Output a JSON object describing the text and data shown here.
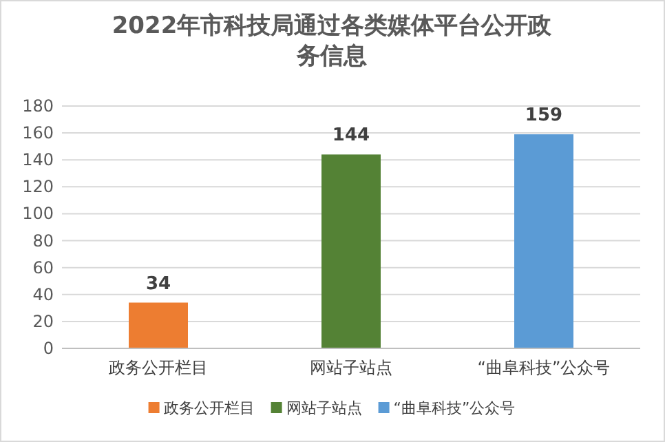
{
  "chart_data": {
    "type": "bar",
    "title": "2022年市科技局通过各类媒体平台公开政务信息",
    "categories": [
      "政务公开栏目",
      "网站子站点",
      "“曲阜科技”公众号"
    ],
    "series": [
      {
        "name": "政务公开栏目",
        "color": "#ed7d31",
        "values": [
          34,
          null,
          null
        ]
      },
      {
        "name": "网站子站点",
        "color": "#548235",
        "values": [
          null,
          144,
          null
        ]
      },
      {
        "name": "“曲阜科技”公众号",
        "color": "#5b9bd5",
        "values": [
          null,
          null,
          159
        ]
      }
    ],
    "ylim": [
      0,
      180
    ],
    "yticks": [
      0,
      20,
      40,
      60,
      80,
      100,
      120,
      140,
      160,
      180
    ],
    "grid": "y",
    "legend": "bottom",
    "data_labels": true
  }
}
